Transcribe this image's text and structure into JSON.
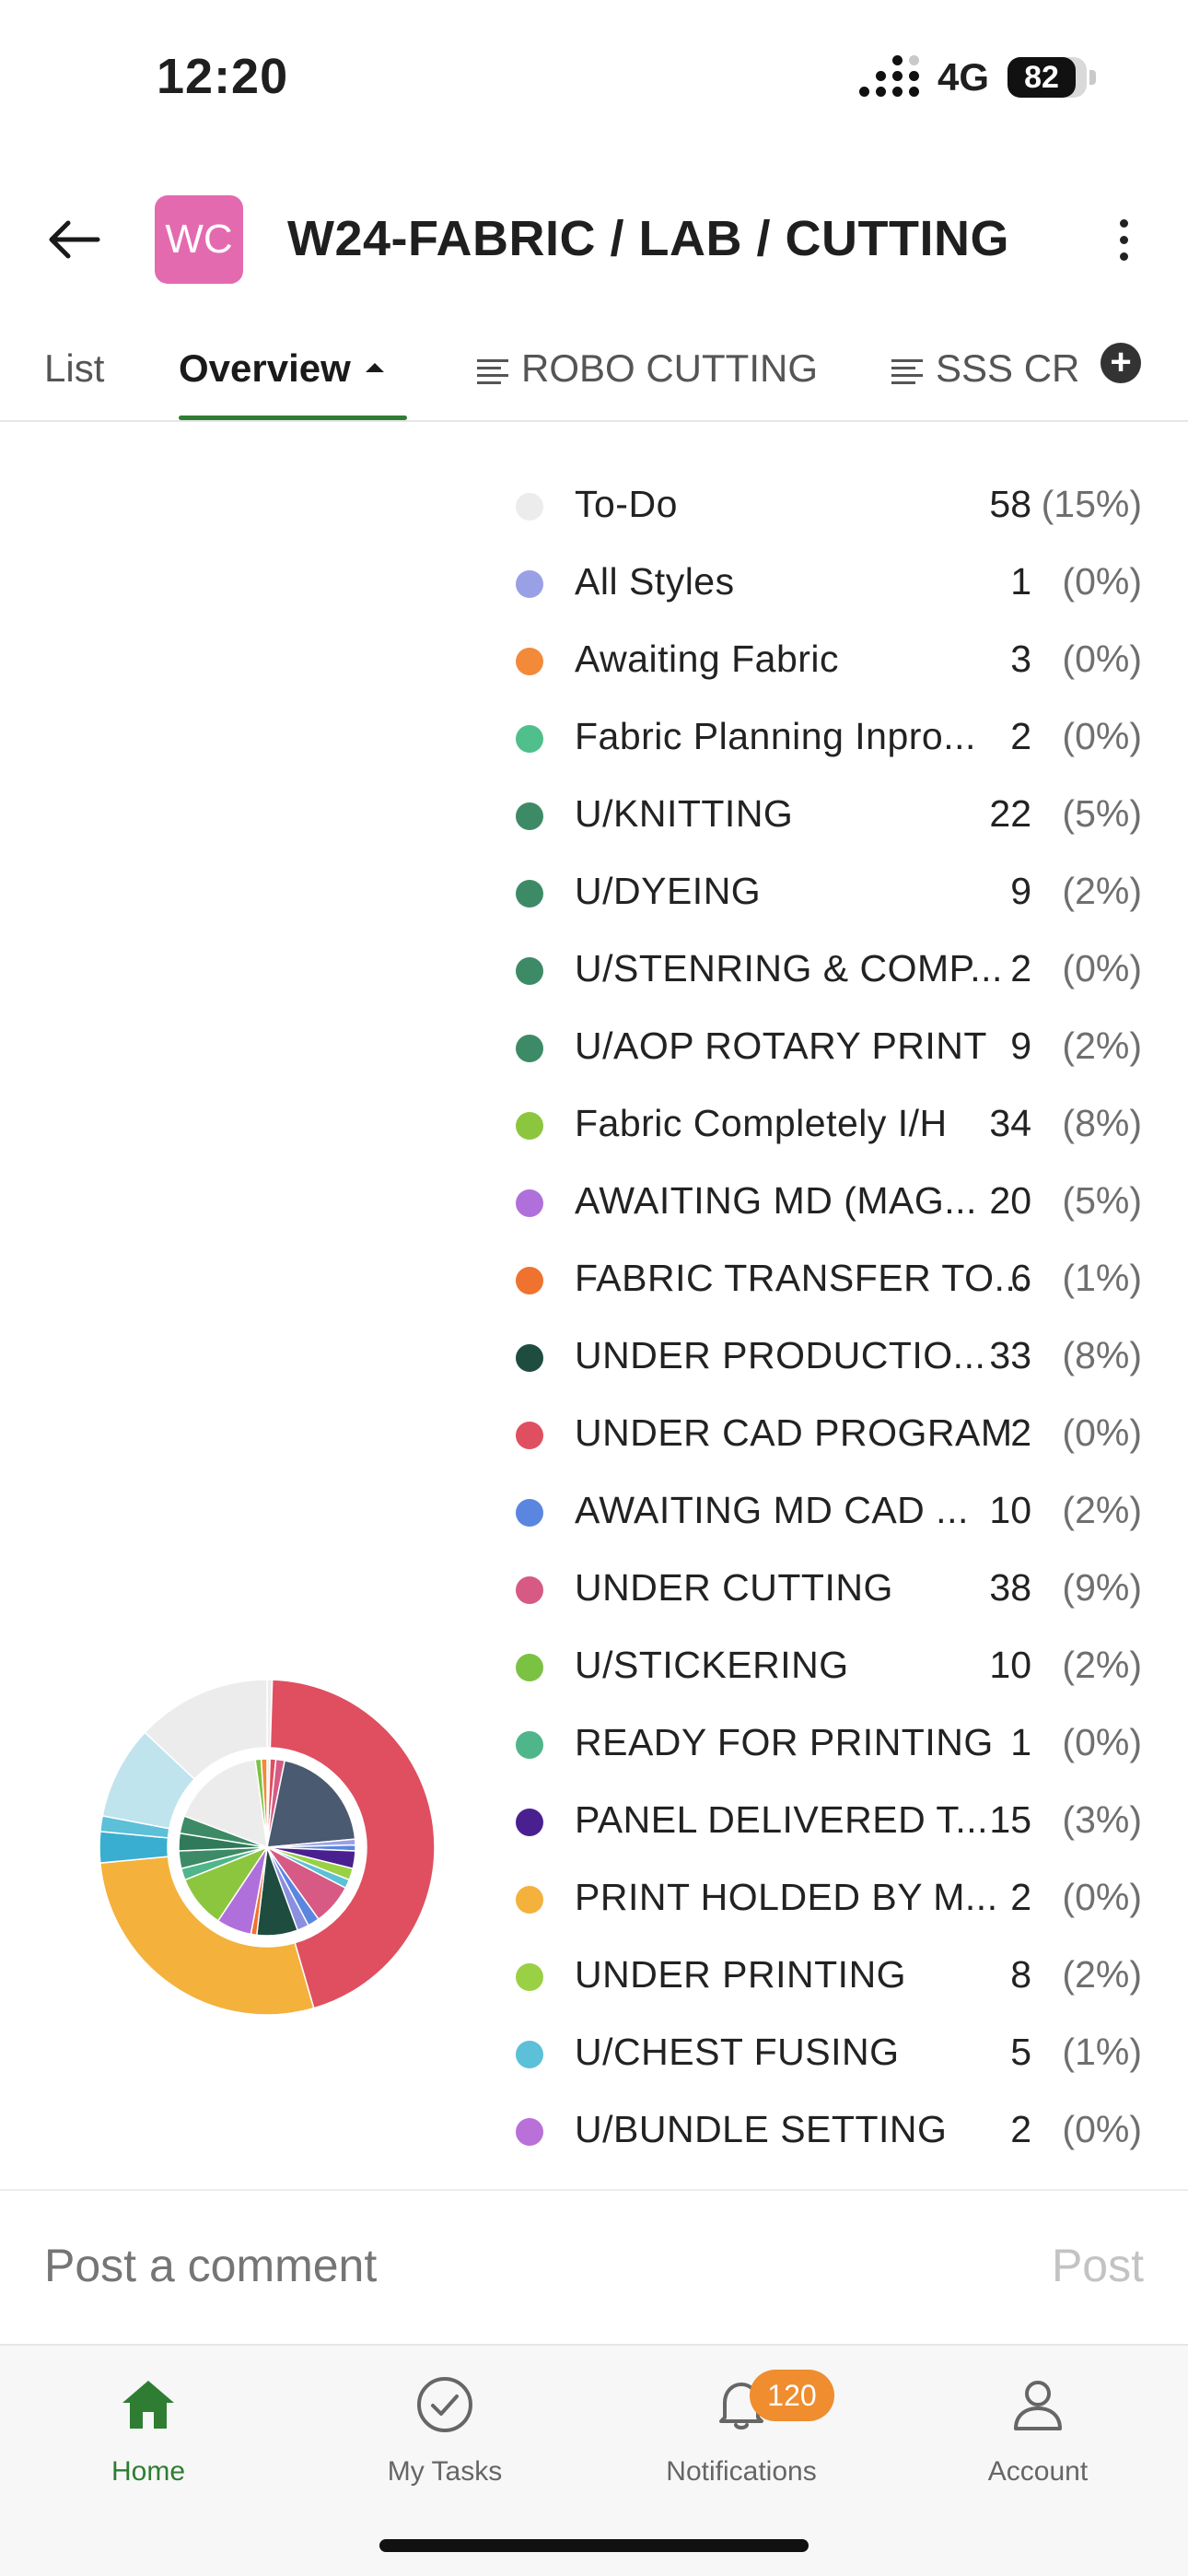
{
  "status_bar": {
    "time": "12:20",
    "network": "4G",
    "battery": "82"
  },
  "header": {
    "avatar_initials": "WC",
    "title": "W24-FABRIC / LAB / CUTTING"
  },
  "tabs": [
    {
      "label": "List"
    },
    {
      "label": "Overview"
    },
    {
      "label": "ROBO CUTTING"
    },
    {
      "label": "SSS CR"
    }
  ],
  "legend": [
    {
      "label": "To-Do",
      "count": "58",
      "pct": "(15%)",
      "color": "#ececec"
    },
    {
      "label": "All Styles",
      "count": "1",
      "pct": "(0%)",
      "color": "#9aa0e6"
    },
    {
      "label": "Awaiting Fabric",
      "count": "3",
      "pct": "(0%)",
      "color": "#f28a3a"
    },
    {
      "label": "Fabric Planning Inpro...",
      "count": "2",
      "pct": "(0%)",
      "color": "#4fbf8c"
    },
    {
      "label": "U/KNITTING",
      "count": "22",
      "pct": "(5%)",
      "color": "#3d8b66"
    },
    {
      "label": "U/DYEING",
      "count": "9",
      "pct": "(2%)",
      "color": "#3d8b66"
    },
    {
      "label": "U/STENRING & COMP...",
      "count": "2",
      "pct": "(0%)",
      "color": "#3d8b66"
    },
    {
      "label": "U/AOP ROTARY PRINT",
      "count": "9",
      "pct": "(2%)",
      "color": "#3d8b66"
    },
    {
      "label": "Fabric Completely I/H",
      "count": "34",
      "pct": "(8%)",
      "color": "#8cc63f"
    },
    {
      "label": "AWAITING MD (MAG...",
      "count": "20",
      "pct": "(5%)",
      "color": "#b070db"
    },
    {
      "label": "FABRIC TRANSFER TO...",
      "count": "6",
      "pct": "(1%)",
      "color": "#f0722f"
    },
    {
      "label": "UNDER PRODUCTIO...",
      "count": "33",
      "pct": "(8%)",
      "color": "#1e4d40"
    },
    {
      "label": "UNDER CAD PROGRAM",
      "count": "2",
      "pct": "(0%)",
      "color": "#df4f60"
    },
    {
      "label": "AWAITING MD CAD ...",
      "count": "10",
      "pct": "(2%)",
      "color": "#5b86e0"
    },
    {
      "label": "UNDER CUTTING",
      "count": "38",
      "pct": "(9%)",
      "color": "#d65a84"
    },
    {
      "label": "U/STICKERING",
      "count": "10",
      "pct": "(2%)",
      "color": "#7cc242"
    },
    {
      "label": "READY FOR PRINTING",
      "count": "1",
      "pct": "(0%)",
      "color": "#4fb58a"
    },
    {
      "label": "PANEL DELIVERED T...",
      "count": "15",
      "pct": "(3%)",
      "color": "#4a2091"
    },
    {
      "label": "PRINT HOLDED BY M...",
      "count": "2",
      "pct": "(0%)",
      "color": "#f4b13c"
    },
    {
      "label": "UNDER PRINTING",
      "count": "8",
      "pct": "(2%)",
      "color": "#9ad044"
    },
    {
      "label": "U/CHEST FUSING",
      "count": "5",
      "pct": "(1%)",
      "color": "#5bc0d8"
    },
    {
      "label": "U/BUNDLE SETTING",
      "count": "2",
      "pct": "(0%)",
      "color": "#b970d8"
    }
  ],
  "chart_data": {
    "type": "pie",
    "outer_ring": [
      {
        "value": 0.5,
        "color": "#ececec"
      },
      {
        "value": 45,
        "color": "#df4f60"
      },
      {
        "value": 28,
        "color": "#f4b13c"
      },
      {
        "value": 3,
        "color": "#3aaed0"
      },
      {
        "value": 1.5,
        "color": "#5bc0d8"
      },
      {
        "value": 9,
        "color": "#bfe4ee"
      },
      {
        "value": 13,
        "color": "#ececec"
      }
    ],
    "inner_pie": [
      {
        "value": 0.5,
        "color": "#ececec"
      },
      {
        "value": 1,
        "color": "#df4f60"
      },
      {
        "value": 1.5,
        "color": "#d65a84"
      },
      {
        "value": 19,
        "color": "#4a5a70"
      },
      {
        "value": 1,
        "color": "#9aa0e6"
      },
      {
        "value": 1,
        "color": "#5b86e0"
      },
      {
        "value": 3,
        "color": "#4a2091"
      },
      {
        "value": 2,
        "color": "#9ad044"
      },
      {
        "value": 1.5,
        "color": "#5bc0d8"
      },
      {
        "value": 7,
        "color": "#d65a84"
      },
      {
        "value": 2,
        "color": "#5b86e0"
      },
      {
        "value": 2,
        "color": "#8a8fe0"
      },
      {
        "value": 7,
        "color": "#1e4d40"
      },
      {
        "value": 1,
        "color": "#f0722f"
      },
      {
        "value": 6,
        "color": "#b070db"
      },
      {
        "value": 9,
        "color": "#8cc63f"
      },
      {
        "value": 2,
        "color": "#4fb58a"
      },
      {
        "value": 3,
        "color": "#3d8b66"
      },
      {
        "value": 3,
        "color": "#2f7a58"
      },
      {
        "value": 3,
        "color": "#3d8b66"
      },
      {
        "value": 16,
        "color": "#ececec"
      },
      {
        "value": 1,
        "color": "#7cc242"
      },
      {
        "value": 1,
        "color": "#f28a3a"
      }
    ]
  },
  "comment": {
    "placeholder": "Post a comment",
    "post_label": "Post"
  },
  "bottom_nav": [
    {
      "label": "Home"
    },
    {
      "label": "My Tasks"
    },
    {
      "label": "Notifications",
      "badge": "120"
    },
    {
      "label": "Account"
    }
  ],
  "colors": {
    "accent": "#2e7d32",
    "badge": "#ef8d2f"
  }
}
